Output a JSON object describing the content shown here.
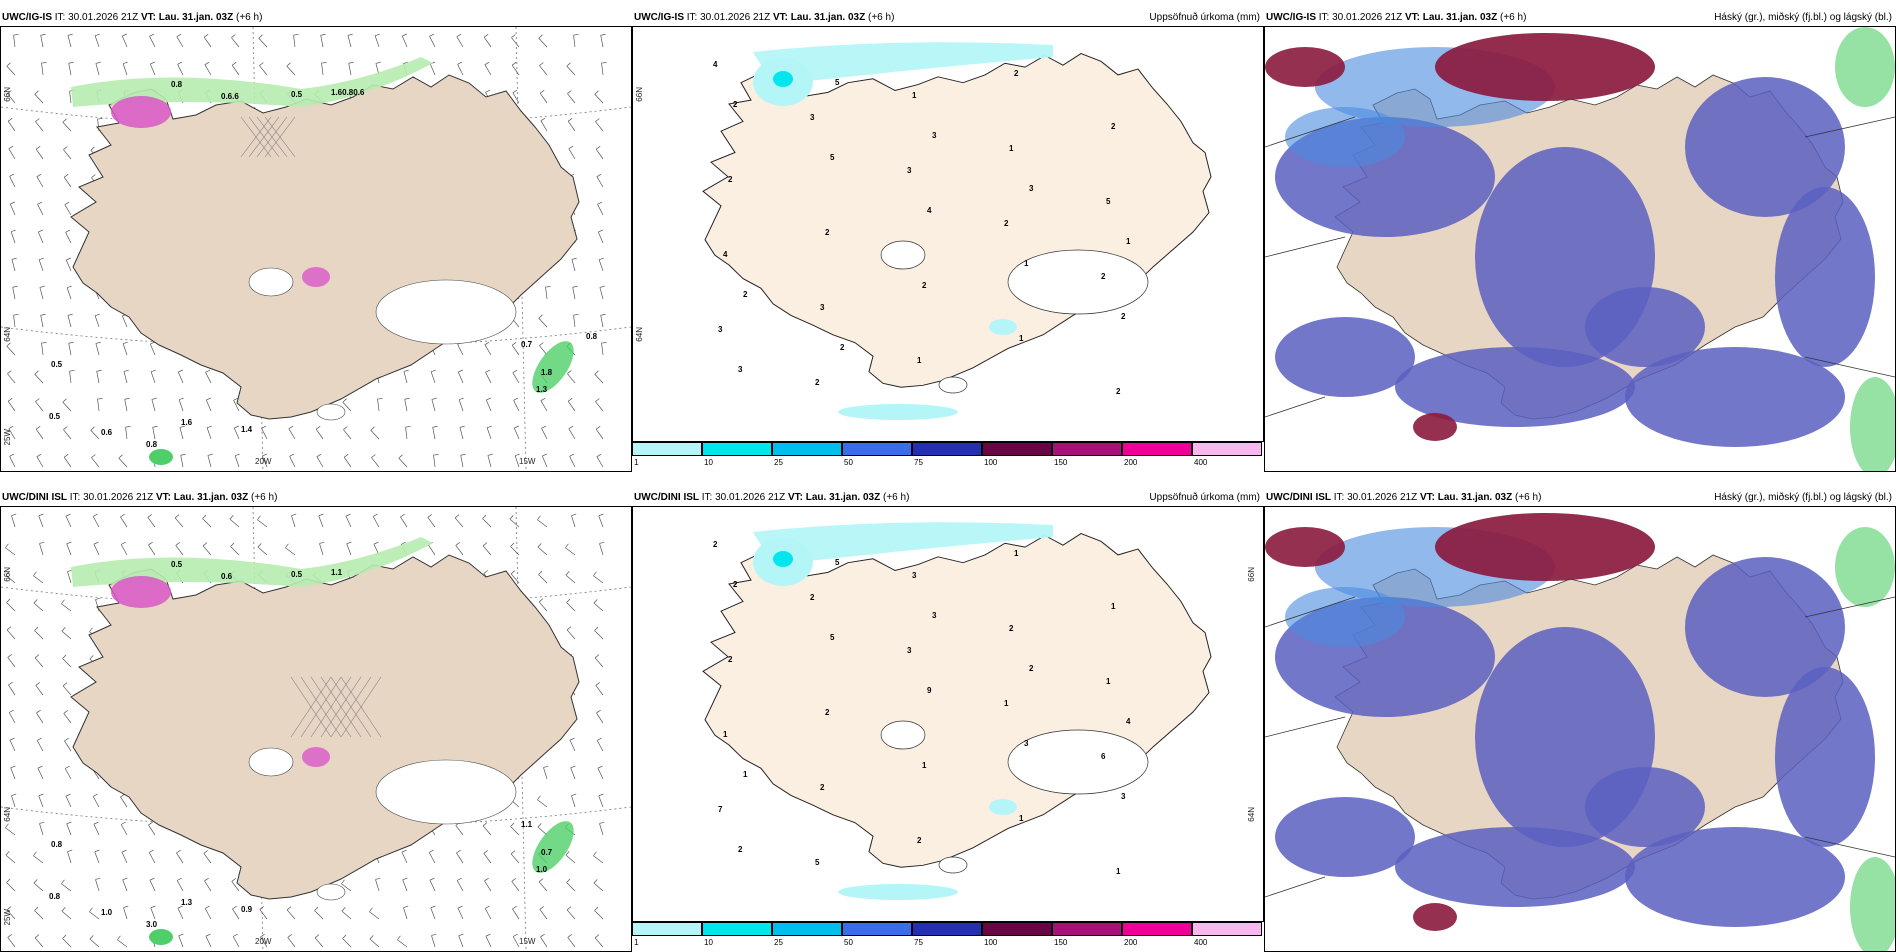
{
  "rows": [
    {
      "id": "row-1",
      "model_label": "UWC/IG-IS",
      "init_prefix": "IT:",
      "init_time": "30.01.2026 21Z",
      "valid_prefix": "VT:",
      "valid_time": "Lau. 31.jan. 03Z",
      "lead": "(+6 h)",
      "precip_title": "Uppsöfnuð úrkoma (mm)",
      "cloud_title": "Háský (gr.), miðský (fj.bl.) og lágský (bl.)",
      "precip_labels": [
        "4",
        "3",
        "3",
        "2",
        "2",
        "3",
        "2",
        "1",
        "1",
        "5",
        "4",
        "3",
        "1",
        "2",
        "2",
        "2",
        "2",
        "2",
        "1",
        "2",
        "2",
        "5",
        "4",
        "1",
        "2",
        "3",
        "5",
        "3",
        "3",
        "1",
        "2",
        "2"
      ],
      "wind_labels": [
        "0.5",
        "0.8",
        "0.6.6",
        "0.5",
        "1.60.80.6",
        "0.5",
        "0.6",
        "0.8",
        "0.7",
        "1.8",
        "1.4",
        "1.6",
        "1.3",
        "0.8"
      ]
    },
    {
      "id": "row-2",
      "model_label": "UWC/DINI ISL",
      "init_prefix": "IT:",
      "init_time": "30.01.2026 21Z",
      "valid_prefix": "VT:",
      "valid_time": "Lau. 31.jan. 03Z",
      "lead": "(+6 h)",
      "precip_title": "Uppsöfnuð úrkoma (mm)",
      "cloud_title": "Háský (gr.), miðský (fj.bl.) og lágský (bl.)",
      "precip_labels": [
        "2",
        "2",
        "3",
        "1",
        "6",
        "7",
        "5",
        "3",
        "2",
        "1",
        "1",
        "2",
        "2",
        "1",
        "1",
        "2",
        "2",
        "1",
        "1",
        "1",
        "2",
        "5",
        "9",
        "3",
        "3",
        "2",
        "5",
        "3",
        "2",
        "4",
        "1"
      ],
      "wind_labels": [
        "0.8",
        "0.5",
        "0.6",
        "0.5",
        "1.1",
        "0.8",
        "1.0",
        "3.0",
        "1.1",
        "0.7",
        "0.9",
        "1.3",
        "1.0"
      ]
    }
  ],
  "axis": {
    "lat_66": "66N",
    "lat_64": "64N",
    "lon_25w": "25W",
    "lon_20w": "20W",
    "lon_15w": "15W"
  },
  "colorbar": {
    "labels": [
      "1",
      "10",
      "25",
      "50",
      "75",
      "100",
      "150",
      "200",
      "400"
    ],
    "colors": [
      "#b4f5f8",
      "#00e6ef",
      "#00bff0",
      "#3a6ee6",
      "#2331b0",
      "#6b0445",
      "#a3117a",
      "#f0009a",
      "#f7b8ef"
    ]
  },
  "colors": {
    "land": "#e8d6c4",
    "land_light": "#fbefe2",
    "precip_light_green": "#b6ecb0",
    "precip_green": "#4fcf68",
    "snow_magenta": "#d957c8",
    "cloud_high": "#8b1a3e",
    "cloud_mid": "#5b5fbf",
    "cloud_low": "#4a8ae0"
  }
}
